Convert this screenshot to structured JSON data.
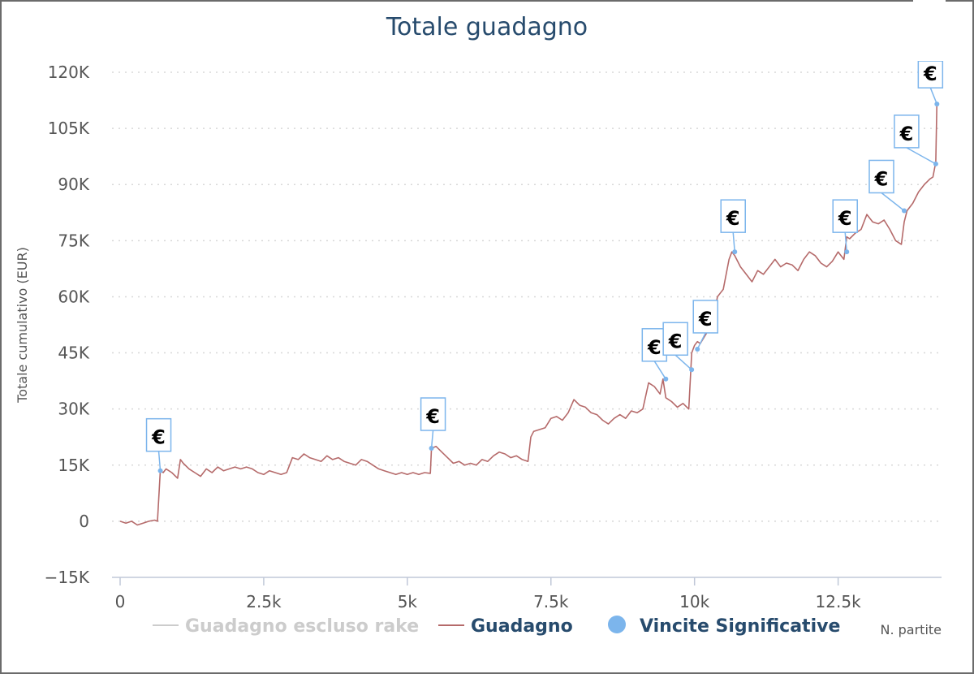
{
  "chart_data": {
    "type": "line",
    "title": "Totale guadagno",
    "ylabel": "Totale cumulativo (EUR)",
    "xlabel": "N. partite",
    "xlim": [
      0,
      14300
    ],
    "ylim": [
      -15000,
      120000
    ],
    "y_ticks": [
      -15000,
      0,
      15000,
      30000,
      45000,
      60000,
      75000,
      90000,
      105000,
      120000
    ],
    "y_tick_labels": [
      "−15K",
      "0",
      "15K",
      "30K",
      "45K",
      "60K",
      "75K",
      "90K",
      "105K",
      "120K"
    ],
    "x_ticks": [
      0,
      2500,
      5000,
      7500,
      10000,
      12500
    ],
    "x_tick_labels": [
      "0",
      "2.5k",
      "5k",
      "7.5k",
      "10k",
      "12.5k"
    ],
    "grid": "horizontal-dotted",
    "legend_position": "bottom",
    "series": [
      {
        "name": "Guadagno escluso rake",
        "color": "#cccccc",
        "visible": false,
        "x": [],
        "y": []
      },
      {
        "name": "Guadagno",
        "color": "#b56a6a",
        "x": [
          0,
          100,
          200,
          300,
          400,
          500,
          600,
          650,
          700,
          750,
          800,
          900,
          1000,
          1050,
          1100,
          1200,
          1300,
          1400,
          1500,
          1600,
          1700,
          1800,
          1900,
          2000,
          2100,
          2200,
          2300,
          2400,
          2500,
          2600,
          2700,
          2800,
          2900,
          3000,
          3100,
          3200,
          3300,
          3400,
          3500,
          3600,
          3700,
          3800,
          3900,
          4000,
          4100,
          4200,
          4300,
          4400,
          4500,
          4600,
          4700,
          4800,
          4900,
          5000,
          5100,
          5200,
          5300,
          5400,
          5420,
          5500,
          5600,
          5700,
          5800,
          5900,
          6000,
          6100,
          6200,
          6300,
          6400,
          6500,
          6600,
          6700,
          6800,
          6900,
          7000,
          7100,
          7150,
          7200,
          7300,
          7400,
          7500,
          7600,
          7700,
          7800,
          7900,
          8000,
          8100,
          8200,
          8300,
          8400,
          8500,
          8600,
          8700,
          8800,
          8900,
          9000,
          9100,
          9200,
          9300,
          9400,
          9450,
          9500,
          9600,
          9700,
          9800,
          9900,
          9950,
          10000,
          10050,
          10100,
          10200,
          10300,
          10400,
          10500,
          10600,
          10650,
          10700,
          10800,
          10900,
          11000,
          11100,
          11200,
          11300,
          11400,
          11500,
          11600,
          11700,
          11800,
          11900,
          12000,
          12100,
          12200,
          12300,
          12400,
          12500,
          12600,
          12650,
          12700,
          12800,
          12900,
          13000,
          13100,
          13200,
          13300,
          13400,
          13500,
          13600,
          13650,
          13700,
          13800,
          13900,
          14000,
          14100,
          14150,
          14200,
          14220
        ],
        "y": [
          0,
          -500,
          0,
          -1000,
          -500,
          0,
          300,
          0,
          13500,
          13000,
          14000,
          13000,
          11500,
          16500,
          15500,
          14000,
          13000,
          12000,
          14000,
          13000,
          14500,
          13500,
          14000,
          14500,
          14000,
          14500,
          14000,
          13000,
          12500,
          13500,
          13000,
          12500,
          13000,
          17000,
          16500,
          18000,
          17000,
          16500,
          16000,
          17500,
          16500,
          17000,
          16000,
          15500,
          15000,
          16500,
          16000,
          15000,
          14000,
          13500,
          13000,
          12500,
          13000,
          12500,
          13000,
          12500,
          13000,
          12800,
          19500,
          20000,
          18500,
          17000,
          15500,
          16000,
          15000,
          15500,
          15000,
          16500,
          16000,
          17500,
          18500,
          18000,
          17000,
          17500,
          16500,
          16000,
          22500,
          24000,
          24500,
          25000,
          27500,
          28000,
          27000,
          29000,
          32500,
          31000,
          30500,
          29000,
          28500,
          27000,
          26000,
          27500,
          28500,
          27500,
          29500,
          29000,
          30000,
          37000,
          36000,
          34000,
          38000,
          33000,
          32000,
          30500,
          31500,
          30000,
          45000,
          47000,
          48000,
          47500,
          50000,
          53000,
          60000,
          62000,
          70000,
          72000,
          71000,
          68000,
          66000,
          64000,
          67000,
          66000,
          68000,
          70000,
          68000,
          69000,
          68500,
          67000,
          70000,
          72000,
          71000,
          69000,
          68000,
          69500,
          72000,
          70000,
          76000,
          75500,
          77000,
          78000,
          82000,
          80000,
          79500,
          80500,
          78000,
          75000,
          74000,
          80000,
          83000,
          85000,
          88000,
          90000,
          91500,
          92000,
          96000,
          112000
        ]
      }
    ],
    "significant_wins": {
      "name": "Vincite Significative",
      "color": "#7cb5ec",
      "marker_label": "€",
      "points": [
        {
          "x": 700,
          "y": 13500
        },
        {
          "x": 5420,
          "y": 19500
        },
        {
          "x": 9500,
          "y": 38000
        },
        {
          "x": 9950,
          "y": 40500
        },
        {
          "x": 10050,
          "y": 46000
        },
        {
          "x": 10700,
          "y": 72000
        },
        {
          "x": 12650,
          "y": 72000
        },
        {
          "x": 13650,
          "y": 83000
        },
        {
          "x": 14200,
          "y": 95500
        },
        {
          "x": 14220,
          "y": 111500
        }
      ]
    }
  }
}
